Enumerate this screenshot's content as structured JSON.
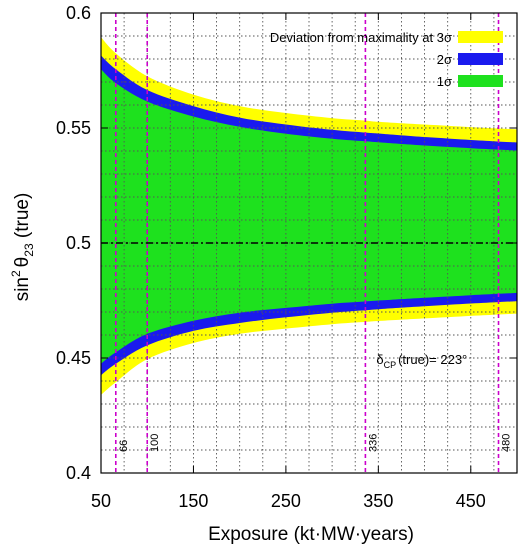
{
  "chart_data": {
    "type": "area",
    "title": "",
    "xlabel": "Exposure (kt·MW·years)",
    "ylabel_main": "sin",
    "ylabel_sup": "2",
    "ylabel_theta": "θ",
    "ylabel_sub": "23",
    "ylabel_suffix": " (true)",
    "xlim": [
      50,
      500
    ],
    "ylim": [
      0.4,
      0.6
    ],
    "xticks": [
      50,
      150,
      250,
      350,
      450
    ],
    "yticks": [
      0.4,
      0.45,
      0.5,
      0.55,
      0.6
    ],
    "xtick_labels": [
      "50",
      "150",
      "250",
      "350",
      "450"
    ],
    "ytick_labels": [
      "0.4",
      "0.45",
      "0.5",
      "0.55",
      "0.6"
    ],
    "grid": true,
    "legend_position": "top-right",
    "x": [
      50,
      66,
      100,
      150,
      200,
      250,
      300,
      336,
      350,
      400,
      450,
      480,
      500
    ],
    "series": [
      {
        "name": "Deviation from maximality at 3σ",
        "color": "#ffff00",
        "upper": [
          0.5895,
          0.5825,
          0.5725,
          0.5645,
          0.5595,
          0.5565,
          0.5543,
          0.5532,
          0.5527,
          0.5515,
          0.5504,
          0.5498,
          0.5494
        ],
        "lower": [
          0.434,
          0.4395,
          0.4495,
          0.4565,
          0.4605,
          0.4628,
          0.4647,
          0.4657,
          0.4661,
          0.4672,
          0.4683,
          0.4689,
          0.4693
        ]
      },
      {
        "name": "2σ",
        "color": "#1a1aee",
        "upper": [
          0.5815,
          0.5755,
          0.5665,
          0.5595,
          0.5545,
          0.5515,
          0.5492,
          0.548,
          0.5476,
          0.5461,
          0.5448,
          0.5441,
          0.5437
        ],
        "lower": [
          0.4425,
          0.4475,
          0.4555,
          0.4618,
          0.4652,
          0.4677,
          0.4697,
          0.4708,
          0.4712,
          0.4725,
          0.4737,
          0.4743,
          0.4747
        ]
      },
      {
        "name": "1σ",
        "color": "#1ee11e",
        "upper": [
          0.5755,
          0.5695,
          0.5615,
          0.555,
          0.5505,
          0.5475,
          0.5453,
          0.5442,
          0.5438,
          0.5424,
          0.5412,
          0.5406,
          0.5402
        ],
        "lower": [
          0.4475,
          0.4525,
          0.4605,
          0.4662,
          0.4697,
          0.4718,
          0.4736,
          0.4746,
          0.475,
          0.4762,
          0.4773,
          0.4779,
          0.4783
        ]
      }
    ],
    "reference_line": {
      "y": 0.5,
      "style": "dash-dot"
    },
    "vertical_lines": [
      {
        "x": 66,
        "label": "66"
      },
      {
        "x": 100,
        "label": "100"
      },
      {
        "x": 336,
        "label": "336"
      },
      {
        "x": 480,
        "label": "480"
      }
    ],
    "vertical_line_color": "#cc00cc",
    "annotation": {
      "prefix": "δ",
      "sub": "CP",
      "suffix": "(true)= 223°",
      "x": 350,
      "y": 0.4475
    }
  }
}
